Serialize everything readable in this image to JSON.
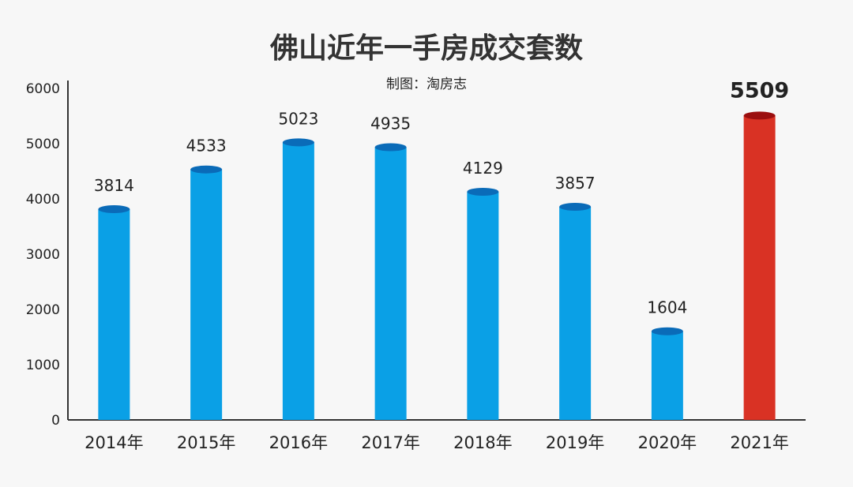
{
  "chart_data": {
    "type": "bar",
    "title": "佛山近年一手房成交套数",
    "subtitle": "制图：淘房志",
    "categories": [
      "2014年",
      "2015年",
      "2016年",
      "2017年",
      "2018年",
      "2019年",
      "2020年",
      "2021年"
    ],
    "values": [
      3814,
      4533,
      5023,
      4935,
      4129,
      3857,
      1604,
      5509
    ],
    "value_labels": [
      "3814",
      "4533",
      "5023",
      "4935",
      "4129",
      "3857",
      "1604",
      "5509"
    ],
    "y_ticks": [
      "0",
      "1000",
      "2000",
      "3000",
      "4000",
      "5000",
      "6000"
    ],
    "ylim": [
      0,
      6000
    ],
    "grid": false,
    "legend": "none",
    "highlight_index": 7,
    "colors": {
      "bar": "#0aa0e6",
      "bar_top": "#0a6bb8",
      "highlight": "#d93224",
      "highlight_top": "#9b0f0f",
      "highlight_label": "#a80d0d",
      "axis": "#333333"
    }
  }
}
